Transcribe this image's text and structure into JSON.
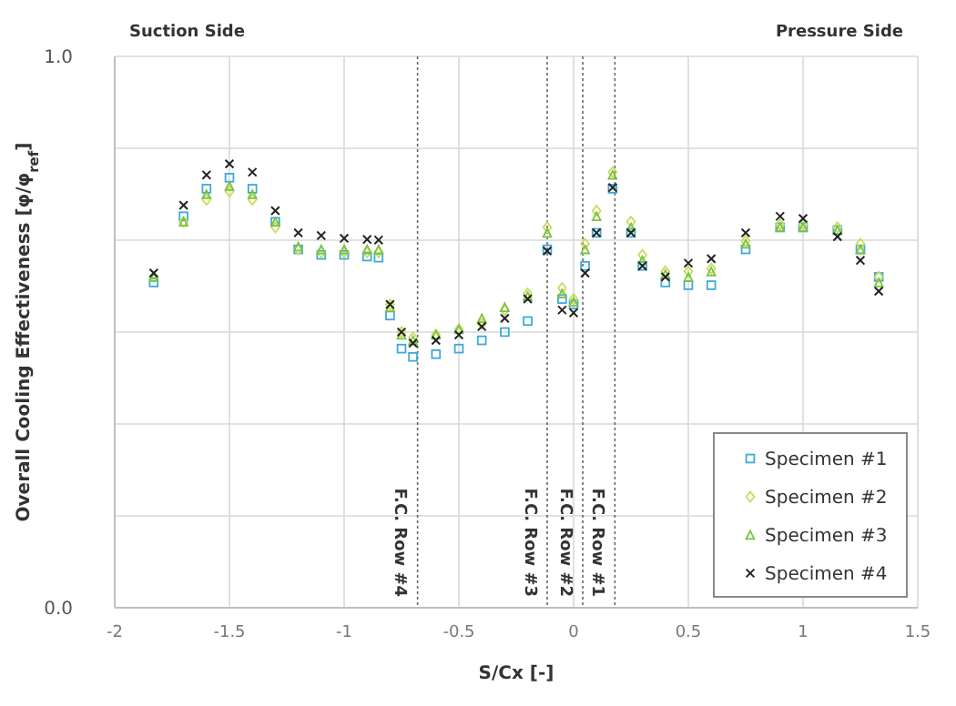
{
  "chart_data": {
    "type": "scatter",
    "xlabel": "S/Cx [-]",
    "ylabel": "Overall Cooling Effectiveness [φ/φ$_{ref}$]",
    "annotations": [
      "Suction Side",
      "Pressure Side"
    ],
    "xlim": [
      -2,
      1.5
    ],
    "xticks": [
      -2,
      -1.5,
      -1,
      -0.5,
      0,
      0.5,
      1,
      1.5
    ],
    "ylim": [
      0,
      1
    ],
    "yticks": [
      {
        "value": 0,
        "label": "0.0"
      },
      {
        "value": 0.1667,
        "label": null
      },
      {
        "value": 0.3333,
        "label": null
      },
      {
        "value": 0.5,
        "label": null
      },
      {
        "value": 0.6667,
        "label": null
      },
      {
        "value": 0.8333,
        "label": null
      },
      {
        "value": 1,
        "label": "1.0"
      }
    ],
    "grid": true,
    "legend": "bottom right",
    "ref_lines": [
      {
        "axis": "x",
        "value": -0.68,
        "label": "F.C. Row #4",
        "line_style": "dotted"
      },
      {
        "axis": "x",
        "value": -0.115,
        "label": "F.C. Row #3",
        "line_style": "dotted"
      },
      {
        "axis": "x",
        "value": 0.04,
        "label": "F.C. Row #2",
        "line_style": "dotted"
      },
      {
        "axis": "x",
        "value": 0.18,
        "label": "F.C. Row #1",
        "line_style": "dotted"
      }
    ],
    "x": [
      -1.83,
      -1.7,
      -1.6,
      -1.5,
      -1.4,
      -1.3,
      -1.2,
      -1.1,
      -1.0,
      -0.9,
      -0.85,
      -0.8,
      -0.75,
      -0.7,
      -0.6,
      -0.5,
      -0.4,
      -0.3,
      -0.2,
      -0.115,
      -0.05,
      0.0,
      0.05,
      0.1,
      0.17,
      0.25,
      0.3,
      0.4,
      0.5,
      0.6,
      0.75,
      0.9,
      1.0,
      1.15,
      1.25,
      1.33
    ],
    "series": [
      {
        "name": "Specimen #1",
        "color": "#3fa9d8",
        "marker": "square",
        "values": [
          0.59,
          0.71,
          0.76,
          0.78,
          0.76,
          0.7,
          0.65,
          0.64,
          0.64,
          0.637,
          0.635,
          0.53,
          0.47,
          0.455,
          0.46,
          0.47,
          0.485,
          0.5,
          0.52,
          0.65,
          0.56,
          0.55,
          0.62,
          0.68,
          0.76,
          0.68,
          0.62,
          0.59,
          0.585,
          0.585,
          0.65,
          0.69,
          0.69,
          0.685,
          0.65,
          0.6
        ]
      },
      {
        "name": "Specimen #2",
        "color": "#c8dc5a",
        "marker": "diamond",
        "values": [
          0.6,
          0.7,
          0.74,
          0.755,
          0.74,
          0.69,
          0.65,
          0.645,
          0.645,
          0.645,
          0.645,
          0.55,
          0.5,
          0.49,
          0.495,
          0.505,
          0.515,
          0.54,
          0.57,
          0.69,
          0.58,
          0.56,
          0.66,
          0.72,
          0.79,
          0.7,
          0.64,
          0.61,
          0.61,
          0.615,
          0.665,
          0.695,
          0.695,
          0.69,
          0.66,
          0.6
        ]
      },
      {
        "name": "Specimen #3",
        "color": "#7cc242",
        "marker": "triangle",
        "values": [
          0.6,
          0.7,
          0.75,
          0.765,
          0.75,
          0.7,
          0.655,
          0.65,
          0.65,
          0.65,
          0.65,
          0.545,
          0.495,
          0.485,
          0.495,
          0.505,
          0.525,
          0.545,
          0.565,
          0.68,
          0.57,
          0.555,
          0.65,
          0.71,
          0.785,
          0.69,
          0.63,
          0.605,
          0.6,
          0.61,
          0.66,
          0.69,
          0.69,
          0.685,
          0.65,
          0.59
        ]
      },
      {
        "name": "Specimen #4",
        "color": "#222222",
        "marker": "cross",
        "values": [
          0.607,
          0.73,
          0.785,
          0.805,
          0.79,
          0.72,
          0.68,
          0.675,
          0.67,
          0.668,
          0.667,
          0.55,
          0.5,
          0.48,
          0.485,
          0.495,
          0.51,
          0.525,
          0.56,
          0.647,
          0.54,
          0.535,
          0.607,
          0.68,
          0.762,
          0.68,
          0.62,
          0.6,
          0.625,
          0.633,
          0.68,
          0.71,
          0.706,
          0.673,
          0.63,
          0.574
        ]
      }
    ]
  }
}
